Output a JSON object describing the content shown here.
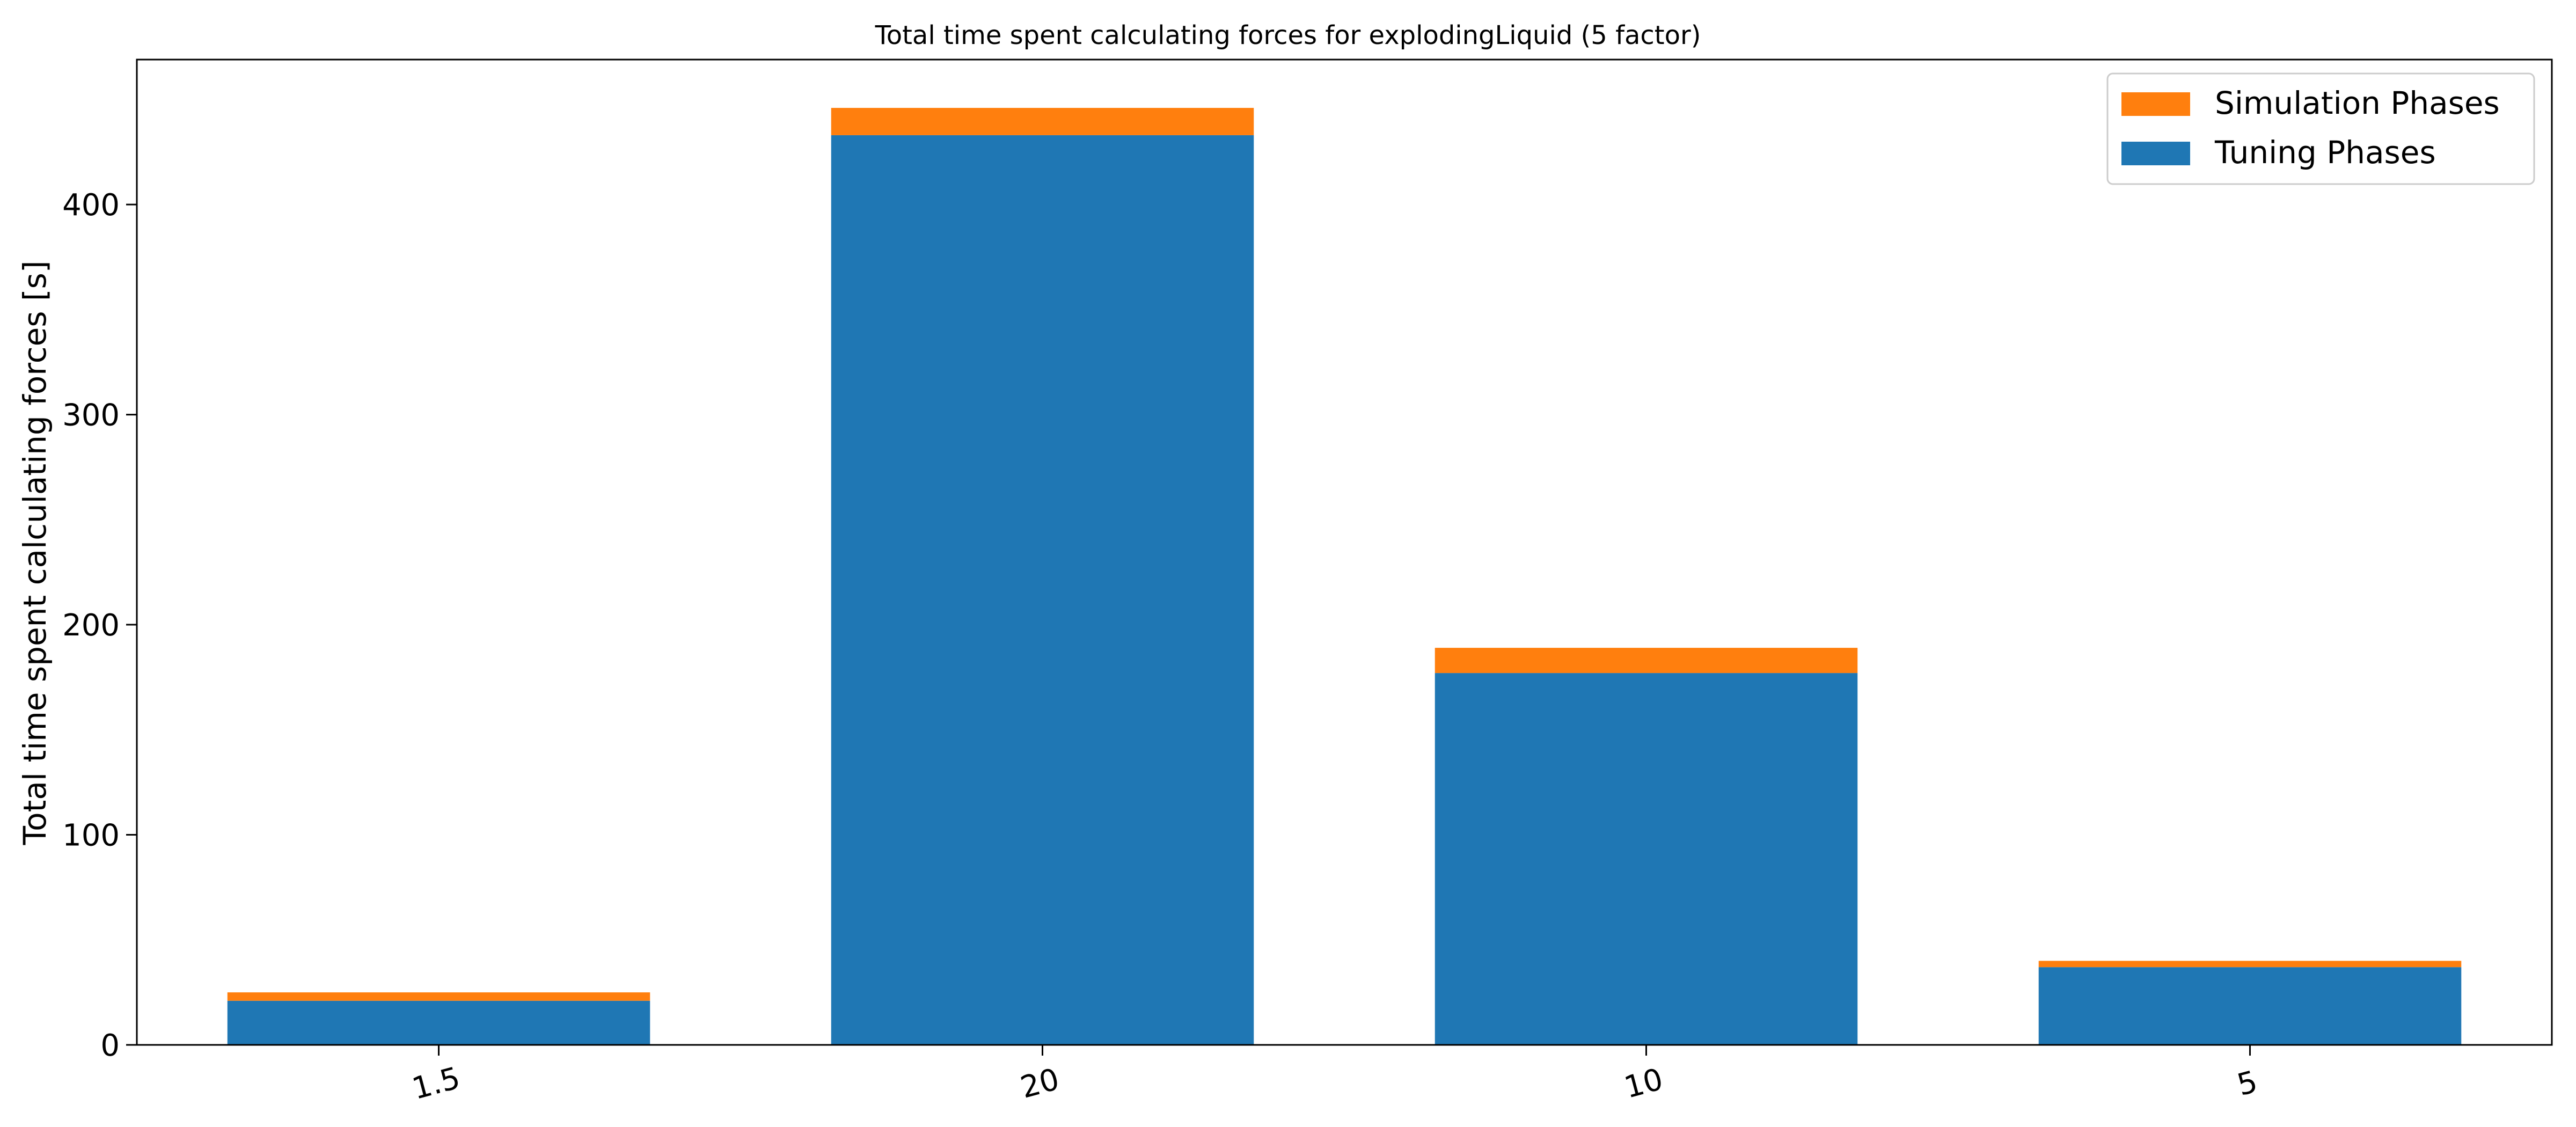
{
  "chart_data": {
    "type": "bar",
    "stacked": true,
    "title": "Total time spent calculating forces for explodingLiquid (5 factor)",
    "xlabel": "",
    "ylabel": "Total time spent calculating forces [s]",
    "categories": [
      "1.5",
      "20",
      "10",
      "5"
    ],
    "series": [
      {
        "name": "Tuning Phases",
        "color": "#1f77b4",
        "values": [
          21,
          433,
          177,
          37
        ]
      },
      {
        "name": "Simulation Phases",
        "color": "#ff7f0e",
        "values": [
          4,
          13,
          12,
          3
        ]
      }
    ],
    "ylim": [
      0,
      469
    ],
    "yticks": [
      0,
      100,
      200,
      300,
      400
    ],
    "grid": false,
    "legend": {
      "position": "top-right",
      "order": [
        "Simulation Phases",
        "Tuning Phases"
      ]
    }
  }
}
